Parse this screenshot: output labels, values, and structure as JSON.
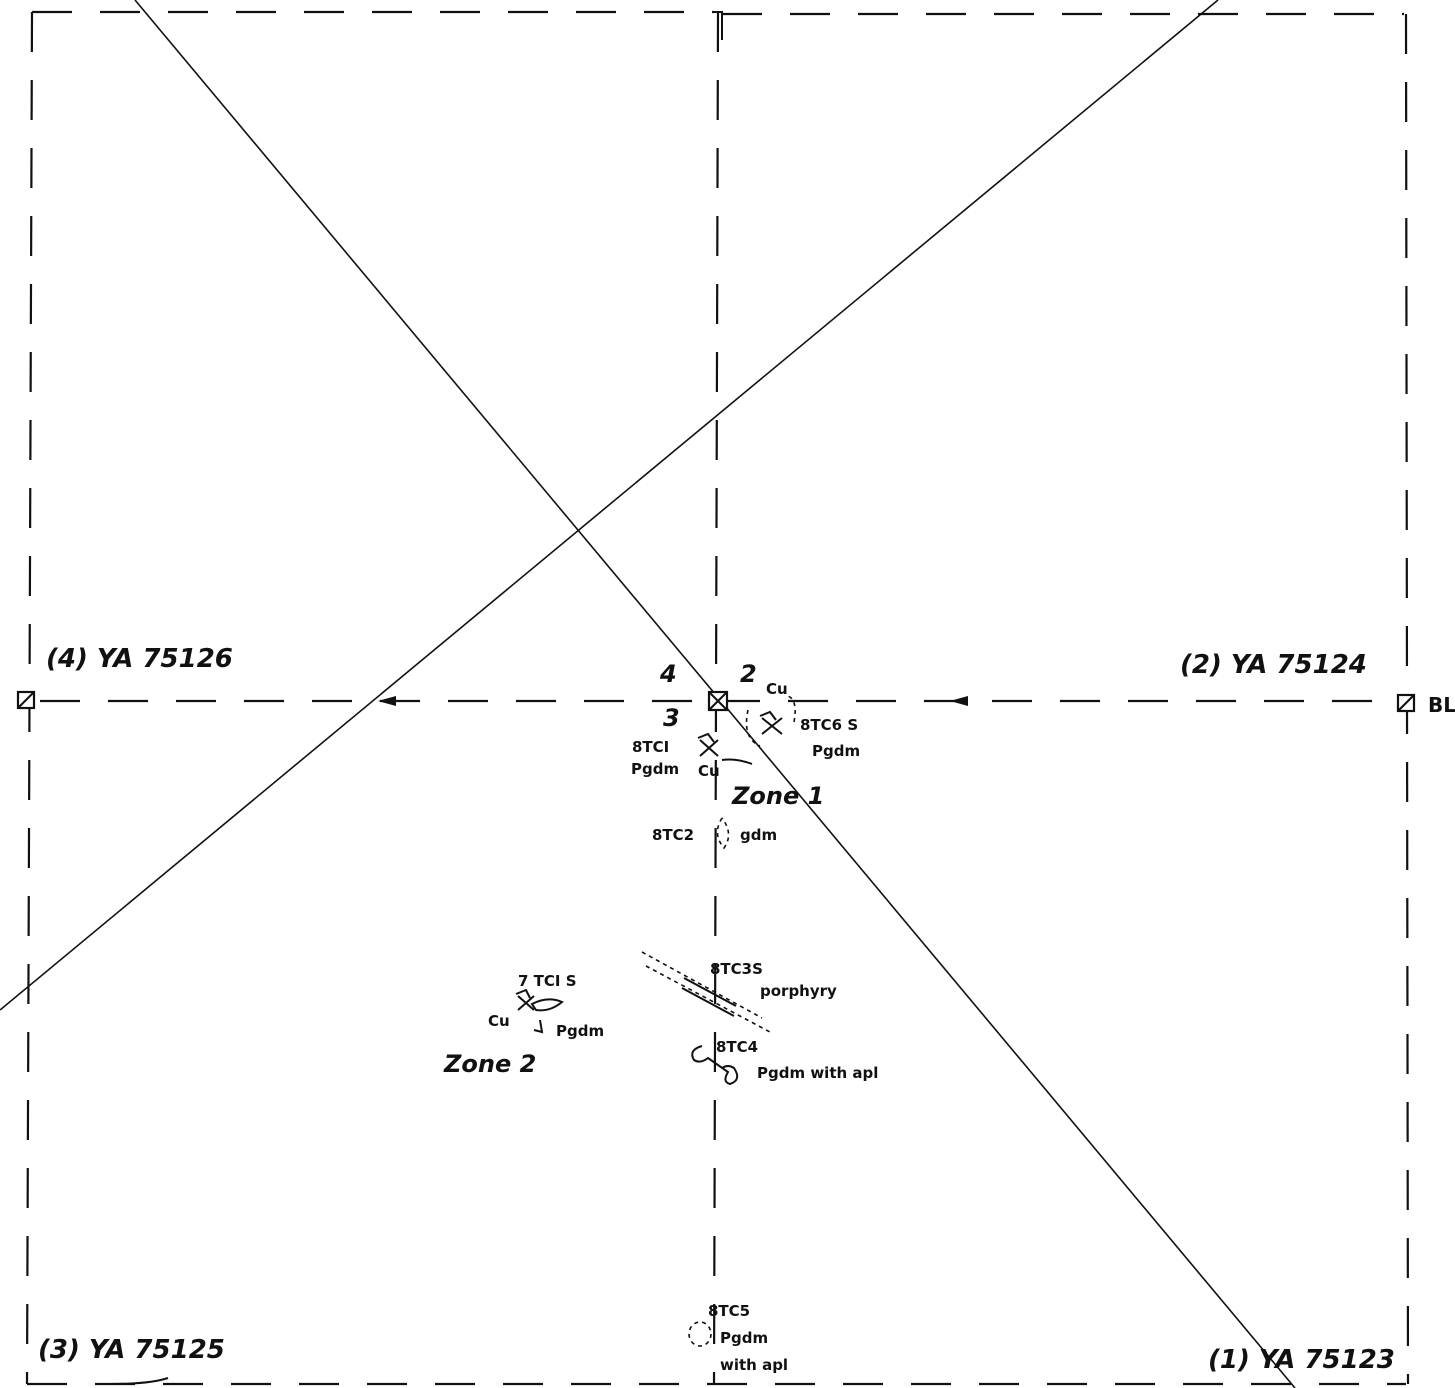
{
  "claims": {
    "nw": "(4) YA 75126",
    "ne": "(2) YA 75124",
    "sw": "(3) YA 75125",
    "se": "(1) YA 75123"
  },
  "posts": {
    "four": "4",
    "two": "2",
    "three": "3"
  },
  "baseline_label": "BL",
  "samples": {
    "btc6": {
      "code": "8TC6 S",
      "rock": "Pgdm",
      "mineral": "Cu"
    },
    "btc1": {
      "code": "8TCI",
      "rock": "Pgdm",
      "mineral": "Cu"
    },
    "btc2": {
      "code": "8TC2",
      "rock": "gdm"
    },
    "btc3": {
      "code": "8TC3S",
      "rock": "porphyry"
    },
    "tc7": {
      "code": "7 TCI S",
      "rock": "Pgdm",
      "mineral": "Cu"
    },
    "btc4": {
      "code": "8TC4",
      "rock": "Pgdm with apl"
    },
    "btc5": {
      "code": "8TC5",
      "rock": "Pgdm",
      "rock2": "with apl"
    }
  },
  "zones": {
    "zone1": "Zone 1",
    "zone2": "Zone 2"
  },
  "colors": {
    "ink": "#111111",
    "paper": "#ffffff"
  }
}
